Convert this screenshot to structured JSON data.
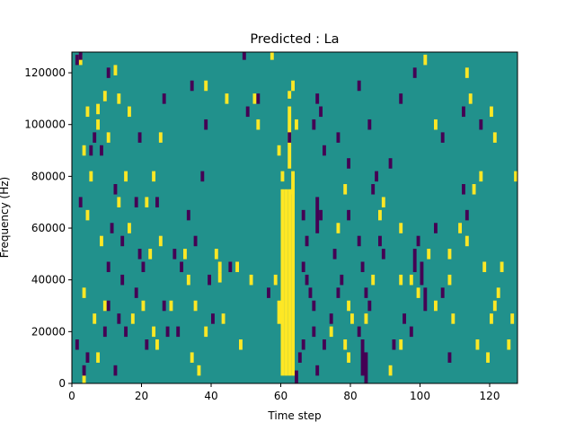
{
  "chart_data": {
    "type": "heatmap",
    "title": "Predicted : La",
    "xlabel": "Time step",
    "ylabel": "Frequency (Hz)",
    "xlim": [
      0,
      128
    ],
    "ylim": [
      0,
      128000
    ],
    "grid": false,
    "legend": "none",
    "x_ticks": [
      0,
      20,
      40,
      60,
      80,
      100,
      120
    ],
    "x_tick_labels": [
      "0",
      "20",
      "40",
      "60",
      "80",
      "100",
      "120"
    ],
    "y_ticks": [
      0,
      20000,
      40000,
      60000,
      80000,
      100000,
      120000
    ],
    "y_tick_labels": [
      "0",
      "20000",
      "40000",
      "60000",
      "80000",
      "100000",
      "120000"
    ],
    "n_time_steps": 128,
    "n_freq_bins": 128,
    "freq_bin_hz": 1000,
    "colors": {
      "background": "#21918c",
      "high": "#fde725",
      "low": "#440154"
    },
    "high_cells": [
      {
        "t": 2,
        "f": [
          123000,
          127000
        ]
      },
      {
        "t": 12,
        "f": [
          119000,
          123000
        ]
      },
      {
        "t": 9,
        "f": [
          109000,
          113000
        ]
      },
      {
        "t": 13,
        "f": [
          108000,
          112000
        ]
      },
      {
        "t": 16,
        "f": [
          103000,
          107000
        ]
      },
      {
        "t": 7,
        "f": [
          104000,
          108000
        ]
      },
      {
        "t": 7,
        "f": [
          98000,
          102000
        ]
      },
      {
        "t": 10,
        "f": [
          93000,
          97000
        ]
      },
      {
        "t": 25,
        "f": [
          93000,
          97000
        ]
      },
      {
        "t": 38,
        "f": [
          113000,
          117000
        ]
      },
      {
        "t": 44,
        "f": [
          108000,
          112000
        ]
      },
      {
        "t": 52,
        "f": [
          108000,
          112000
        ]
      },
      {
        "t": 53,
        "f": [
          98000,
          102000
        ]
      },
      {
        "t": 57,
        "f": [
          125000,
          128000
        ]
      },
      {
        "t": 4,
        "f": [
          103000,
          107000
        ]
      },
      {
        "t": 3,
        "f": [
          88000,
          92000
        ]
      },
      {
        "t": 5,
        "f": [
          78000,
          82000
        ]
      },
      {
        "t": 15,
        "f": [
          78000,
          82000
        ]
      },
      {
        "t": 23,
        "f": [
          78000,
          82000
        ]
      },
      {
        "t": 13,
        "f": [
          68000,
          72000
        ]
      },
      {
        "t": 21,
        "f": [
          68000,
          72000
        ]
      },
      {
        "t": 4,
        "f": [
          63000,
          67000
        ]
      },
      {
        "t": 16,
        "f": [
          58000,
          62000
        ]
      },
      {
        "t": 8,
        "f": [
          53000,
          57000
        ]
      },
      {
        "t": 25,
        "f": [
          53000,
          57000
        ]
      },
      {
        "t": 22,
        "f": [
          48000,
          52000
        ]
      },
      {
        "t": 32,
        "f": [
          48000,
          52000
        ]
      },
      {
        "t": 41,
        "f": [
          48000,
          52000
        ]
      },
      {
        "t": 42,
        "f": [
          43000,
          47000
        ]
      },
      {
        "t": 42,
        "f": [
          39000,
          43000
        ]
      },
      {
        "t": 47,
        "f": [
          43000,
          47000
        ]
      },
      {
        "t": 51,
        "f": [
          38000,
          42000
        ]
      },
      {
        "t": 33,
        "f": [
          38000,
          42000
        ]
      },
      {
        "t": 3,
        "f": [
          33000,
          37000
        ]
      },
      {
        "t": 9,
        "f": [
          28000,
          32000
        ]
      },
      {
        "t": 20,
        "f": [
          28000,
          32000
        ]
      },
      {
        "t": 28,
        "f": [
          28000,
          32000
        ]
      },
      {
        "t": 35,
        "f": [
          28000,
          32000
        ]
      },
      {
        "t": 6,
        "f": [
          23000,
          27000
        ]
      },
      {
        "t": 17,
        "f": [
          23000,
          27000
        ]
      },
      {
        "t": 23,
        "f": [
          18000,
          22000
        ]
      },
      {
        "t": 38,
        "f": [
          18000,
          22000
        ]
      },
      {
        "t": 43,
        "f": [
          23000,
          27000
        ]
      },
      {
        "t": 48,
        "f": [
          13000,
          17000
        ]
      },
      {
        "t": 34,
        "f": [
          8000,
          12000
        ]
      },
      {
        "t": 36,
        "f": [
          3000,
          7000
        ]
      },
      {
        "t": 7,
        "f": [
          8000,
          12000
        ]
      },
      {
        "t": 3,
        "f": [
          0,
          4000
        ]
      },
      {
        "t": 24,
        "f": [
          13000,
          17000
        ]
      },
      {
        "t": 60,
        "f": [
          3000,
          75000
        ]
      },
      {
        "t": 61,
        "f": [
          3000,
          75000
        ]
      },
      {
        "t": 62,
        "f": [
          3000,
          75000
        ]
      },
      {
        "t": 63,
        "f": [
          3000,
          75000
        ]
      },
      {
        "t": 59,
        "f": [
          23000,
          32000
        ]
      },
      {
        "t": 58,
        "f": [
          38000,
          42000
        ]
      },
      {
        "t": 60,
        "f": [
          78000,
          82000
        ]
      },
      {
        "t": 59,
        "f": [
          88000,
          92000
        ]
      },
      {
        "t": 62,
        "f": [
          83000,
          107000
        ]
      },
      {
        "t": 62,
        "f": [
          110000,
          113000
        ]
      },
      {
        "t": 63,
        "f": [
          113000,
          117000
        ]
      },
      {
        "t": 64,
        "f": [
          98000,
          102000
        ]
      },
      {
        "t": 63,
        "f": [
          73000,
          82000
        ]
      },
      {
        "t": 74,
        "f": [
          18000,
          22000
        ]
      },
      {
        "t": 76,
        "f": [
          58000,
          62000
        ]
      },
      {
        "t": 78,
        "f": [
          73000,
          77000
        ]
      },
      {
        "t": 78,
        "f": [
          13000,
          17000
        ]
      },
      {
        "t": 79,
        "f": [
          8000,
          12000
        ]
      },
      {
        "t": 79,
        "f": [
          28000,
          32000
        ]
      },
      {
        "t": 80,
        "f": [
          23000,
          27000
        ]
      },
      {
        "t": 84,
        "f": [
          23000,
          27000
        ]
      },
      {
        "t": 86,
        "f": [
          38000,
          42000
        ]
      },
      {
        "t": 88,
        "f": [
          63000,
          67000
        ]
      },
      {
        "t": 89,
        "f": [
          68000,
          72000
        ]
      },
      {
        "t": 91,
        "f": [
          3000,
          7000
        ]
      },
      {
        "t": 94,
        "f": [
          13000,
          17000
        ]
      },
      {
        "t": 94,
        "f": [
          58000,
          62000
        ]
      },
      {
        "t": 94,
        "f": [
          38000,
          42000
        ]
      },
      {
        "t": 97,
        "f": [
          38000,
          42000
        ]
      },
      {
        "t": 99,
        "f": [
          33000,
          37000
        ]
      },
      {
        "t": 102,
        "f": [
          48000,
          52000
        ]
      },
      {
        "t": 104,
        "f": [
          28000,
          32000
        ]
      },
      {
        "t": 104,
        "f": [
          98000,
          102000
        ]
      },
      {
        "t": 108,
        "f": [
          48000,
          52000
        ]
      },
      {
        "t": 108,
        "f": [
          38000,
          42000
        ]
      },
      {
        "t": 109,
        "f": [
          23000,
          27000
        ]
      },
      {
        "t": 111,
        "f": [
          58000,
          62000
        ]
      },
      {
        "t": 113,
        "f": [
          53000,
          57000
        ]
      },
      {
        "t": 115,
        "f": [
          73000,
          77000
        ]
      },
      {
        "t": 116,
        "f": [
          13000,
          17000
        ]
      },
      {
        "t": 117,
        "f": [
          78000,
          82000
        ]
      },
      {
        "t": 118,
        "f": [
          43000,
          47000
        ]
      },
      {
        "t": 119,
        "f": [
          8000,
          12000
        ]
      },
      {
        "t": 120,
        "f": [
          23000,
          27000
        ]
      },
      {
        "t": 121,
        "f": [
          28000,
          32000
        ]
      },
      {
        "t": 122,
        "f": [
          33000,
          37000
        ]
      },
      {
        "t": 123,
        "f": [
          43000,
          47000
        ]
      },
      {
        "t": 125,
        "f": [
          13000,
          17000
        ]
      },
      {
        "t": 126,
        "f": [
          23000,
          27000
        ]
      },
      {
        "t": 127,
        "f": [
          78000,
          82000
        ]
      },
      {
        "t": 101,
        "f": [
          123000,
          127000
        ]
      },
      {
        "t": 113,
        "f": [
          118000,
          122000
        ]
      },
      {
        "t": 114,
        "f": [
          108000,
          112000
        ]
      },
      {
        "t": 120,
        "f": [
          103000,
          107000
        ]
      },
      {
        "t": 121,
        "f": [
          93000,
          97000
        ]
      }
    ],
    "low_cells": [
      {
        "t": 2,
        "f": [
          125000,
          128000
        ]
      },
      {
        "t": 10,
        "f": [
          118000,
          122000
        ]
      },
      {
        "t": 34,
        "f": [
          113000,
          117000
        ]
      },
      {
        "t": 49,
        "f": [
          125000,
          128000
        ]
      },
      {
        "t": 26,
        "f": [
          108000,
          112000
        ]
      },
      {
        "t": 6,
        "f": [
          93000,
          97000
        ]
      },
      {
        "t": 5,
        "f": [
          88000,
          92000
        ]
      },
      {
        "t": 1,
        "f": [
          123000,
          127000
        ]
      },
      {
        "t": 19,
        "f": [
          93000,
          97000
        ]
      },
      {
        "t": 8,
        "f": [
          88000,
          92000
        ]
      },
      {
        "t": 38,
        "f": [
          98000,
          102000
        ]
      },
      {
        "t": 50,
        "f": [
          103000,
          107000
        ]
      },
      {
        "t": 53,
        "f": [
          108000,
          112000
        ]
      },
      {
        "t": 2,
        "f": [
          68000,
          72000
        ]
      },
      {
        "t": 12,
        "f": [
          73000,
          77000
        ]
      },
      {
        "t": 18,
        "f": [
          68000,
          72000
        ]
      },
      {
        "t": 24,
        "f": [
          68000,
          72000
        ]
      },
      {
        "t": 37,
        "f": [
          78000,
          82000
        ]
      },
      {
        "t": 33,
        "f": [
          63000,
          67000
        ]
      },
      {
        "t": 11,
        "f": [
          58000,
          62000
        ]
      },
      {
        "t": 14,
        "f": [
          53000,
          57000
        ]
      },
      {
        "t": 19,
        "f": [
          48000,
          52000
        ]
      },
      {
        "t": 29,
        "f": [
          48000,
          52000
        ]
      },
      {
        "t": 35,
        "f": [
          53000,
          57000
        ]
      },
      {
        "t": 10,
        "f": [
          43000,
          47000
        ]
      },
      {
        "t": 14,
        "f": [
          38000,
          42000
        ]
      },
      {
        "t": 20,
        "f": [
          43000,
          47000
        ]
      },
      {
        "t": 31,
        "f": [
          43000,
          47000
        ]
      },
      {
        "t": 39,
        "f": [
          38000,
          42000
        ]
      },
      {
        "t": 45,
        "f": [
          43000,
          47000
        ]
      },
      {
        "t": 10,
        "f": [
          28000,
          32000
        ]
      },
      {
        "t": 13,
        "f": [
          23000,
          27000
        ]
      },
      {
        "t": 18,
        "f": [
          33000,
          37000
        ]
      },
      {
        "t": 26,
        "f": [
          28000,
          32000
        ]
      },
      {
        "t": 30,
        "f": [
          18000,
          22000
        ]
      },
      {
        "t": 40,
        "f": [
          23000,
          27000
        ]
      },
      {
        "t": 1,
        "f": [
          13000,
          17000
        ]
      },
      {
        "t": 4,
        "f": [
          8000,
          12000
        ]
      },
      {
        "t": 9,
        "f": [
          18000,
          22000
        ]
      },
      {
        "t": 15,
        "f": [
          18000,
          22000
        ]
      },
      {
        "t": 21,
        "f": [
          13000,
          17000
        ]
      },
      {
        "t": 27,
        "f": [
          18000,
          22000
        ]
      },
      {
        "t": 3,
        "f": [
          3000,
          7000
        ]
      },
      {
        "t": 12,
        "f": [
          3000,
          7000
        ]
      },
      {
        "t": 56,
        "f": [
          33000,
          37000
        ]
      },
      {
        "t": 64,
        "f": [
          0,
          5000
        ]
      },
      {
        "t": 65,
        "f": [
          8000,
          12000
        ]
      },
      {
        "t": 66,
        "f": [
          13000,
          17000
        ]
      },
      {
        "t": 66,
        "f": [
          63000,
          67000
        ]
      },
      {
        "t": 67,
        "f": [
          53000,
          57000
        ]
      },
      {
        "t": 66,
        "f": [
          43000,
          47000
        ]
      },
      {
        "t": 67,
        "f": [
          38000,
          42000
        ]
      },
      {
        "t": 68,
        "f": [
          33000,
          37000
        ]
      },
      {
        "t": 69,
        "f": [
          28000,
          32000
        ]
      },
      {
        "t": 70,
        "f": [
          58000,
          72000
        ]
      },
      {
        "t": 71,
        "f": [
          63000,
          67000
        ]
      },
      {
        "t": 69,
        "f": [
          18000,
          22000
        ]
      },
      {
        "t": 70,
        "f": [
          3000,
          7000
        ]
      },
      {
        "t": 72,
        "f": [
          13000,
          17000
        ]
      },
      {
        "t": 74,
        "f": [
          23000,
          27000
        ]
      },
      {
        "t": 75,
        "f": [
          48000,
          52000
        ]
      },
      {
        "t": 76,
        "f": [
          33000,
          37000
        ]
      },
      {
        "t": 77,
        "f": [
          38000,
          42000
        ]
      },
      {
        "t": 79,
        "f": [
          63000,
          67000
        ]
      },
      {
        "t": 82,
        "f": [
          53000,
          57000
        ]
      },
      {
        "t": 83,
        "f": [
          43000,
          47000
        ]
      },
      {
        "t": 84,
        "f": [
          33000,
          37000
        ]
      },
      {
        "t": 85,
        "f": [
          28000,
          32000
        ]
      },
      {
        "t": 83,
        "f": [
          3000,
          17000
        ]
      },
      {
        "t": 84,
        "f": [
          0,
          12000
        ]
      },
      {
        "t": 82,
        "f": [
          18000,
          22000
        ]
      },
      {
        "t": 88,
        "f": [
          53000,
          57000
        ]
      },
      {
        "t": 89,
        "f": [
          48000,
          52000
        ]
      },
      {
        "t": 92,
        "f": [
          13000,
          17000
        ]
      },
      {
        "t": 97,
        "f": [
          18000,
          22000
        ]
      },
      {
        "t": 98,
        "f": [
          43000,
          52000
        ]
      },
      {
        "t": 100,
        "f": [
          38000,
          47000
        ]
      },
      {
        "t": 101,
        "f": [
          28000,
          37000
        ]
      },
      {
        "t": 104,
        "f": [
          58000,
          62000
        ]
      },
      {
        "t": 106,
        "f": [
          33000,
          37000
        ]
      },
      {
        "t": 108,
        "f": [
          8000,
          12000
        ]
      },
      {
        "t": 112,
        "f": [
          73000,
          77000
        ]
      },
      {
        "t": 113,
        "f": [
          63000,
          67000
        ]
      },
      {
        "t": 99,
        "f": [
          53000,
          57000
        ]
      },
      {
        "t": 95,
        "f": [
          23000,
          27000
        ]
      },
      {
        "t": 69,
        "f": [
          98000,
          102000
        ]
      },
      {
        "t": 70,
        "f": [
          108000,
          112000
        ]
      },
      {
        "t": 71,
        "f": [
          103000,
          107000
        ]
      },
      {
        "t": 72,
        "f": [
          88000,
          92000
        ]
      },
      {
        "t": 76,
        "f": [
          93000,
          97000
        ]
      },
      {
        "t": 79,
        "f": [
          83000,
          87000
        ]
      },
      {
        "t": 82,
        "f": [
          113000,
          117000
        ]
      },
      {
        "t": 85,
        "f": [
          98000,
          102000
        ]
      },
      {
        "t": 91,
        "f": [
          83000,
          87000
        ]
      },
      {
        "t": 94,
        "f": [
          108000,
          112000
        ]
      },
      {
        "t": 98,
        "f": [
          118000,
          122000
        ]
      },
      {
        "t": 106,
        "f": [
          93000,
          97000
        ]
      },
      {
        "t": 112,
        "f": [
          103000,
          107000
        ]
      },
      {
        "t": 117,
        "f": [
          98000,
          102000
        ]
      },
      {
        "t": 86,
        "f": [
          73000,
          77000
        ]
      },
      {
        "t": 87,
        "f": [
          78000,
          82000
        ]
      },
      {
        "t": 62,
        "f": [
          93000,
          97000
        ]
      }
    ]
  }
}
